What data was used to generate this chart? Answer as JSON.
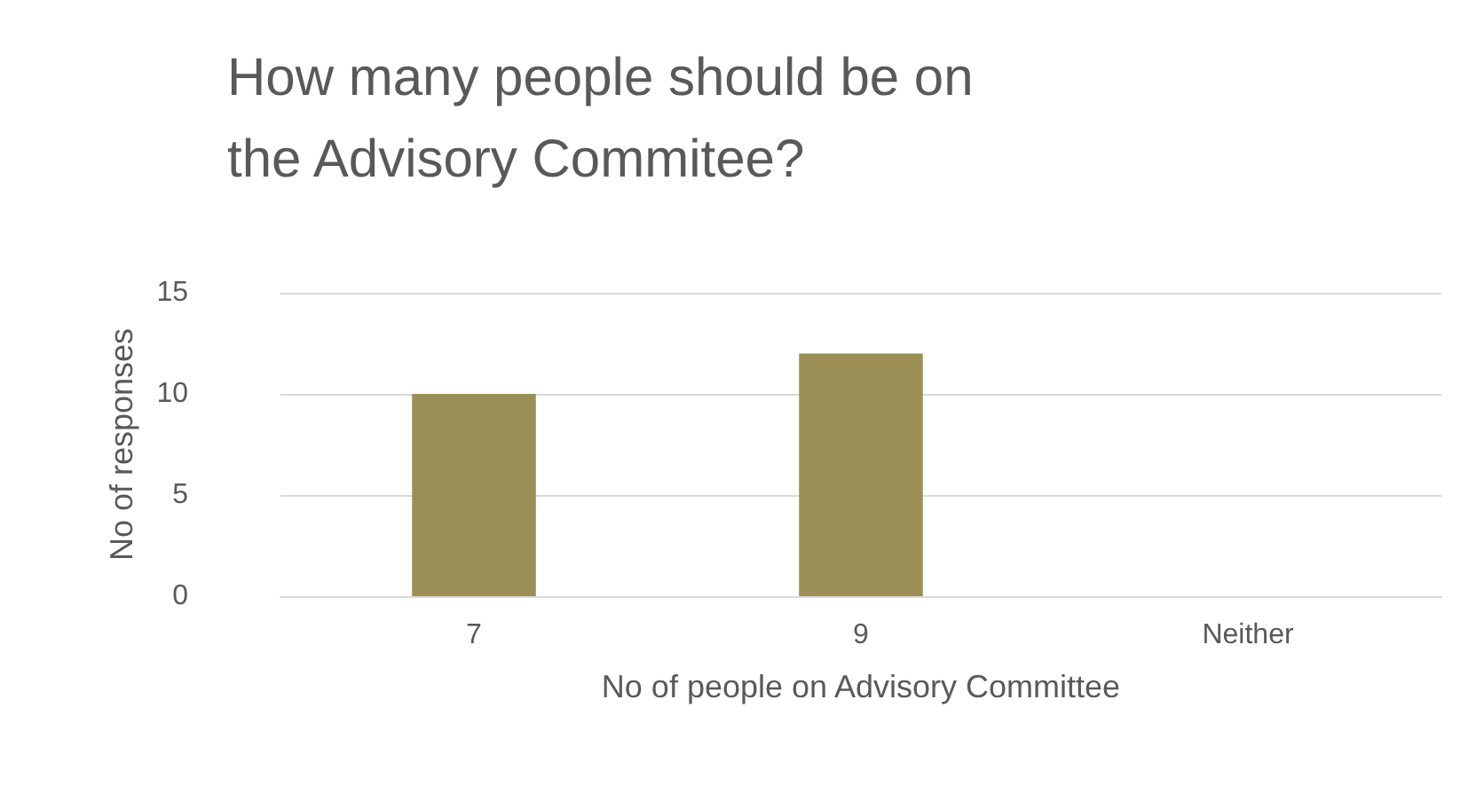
{
  "chart_data": {
    "type": "bar",
    "title": "How many people should be on the Advisory Commitee?",
    "xlabel": "No of people on Advisory Committee",
    "ylabel": "No of responses",
    "categories": [
      "7",
      "9",
      "Neither"
    ],
    "values": [
      10,
      12,
      0
    ],
    "color": "#9b8f55",
    "ylim": [
      0,
      15
    ],
    "yticks": [
      0,
      5,
      10,
      15
    ],
    "grid": "y"
  }
}
